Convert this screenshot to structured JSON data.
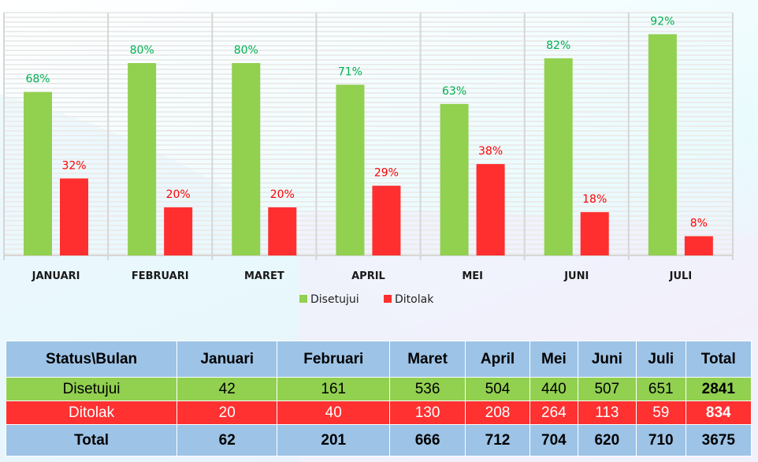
{
  "chart_data": {
    "type": "bar",
    "categories": [
      "JANUARI",
      "FEBRUARI",
      "MARET",
      "APRIL",
      "MEI",
      "JUNI",
      "JULI"
    ],
    "series": [
      {
        "name": "Disetujui",
        "values": [
          68,
          80,
          80,
          71,
          63,
          82,
          92
        ],
        "labels": [
          "68%",
          "80%",
          "80%",
          "71%",
          "63%",
          "82%",
          "92%"
        ],
        "color": "#92d050",
        "label_color": "#00b050"
      },
      {
        "name": "Ditolak",
        "values": [
          32,
          20,
          20,
          29,
          38,
          18,
          8
        ],
        "labels": [
          "32%",
          "20%",
          "20%",
          "29%",
          "38%",
          "18%",
          "8%"
        ],
        "color": "#ff2f2f",
        "label_color": "#ff0000"
      }
    ],
    "ylim": [
      0,
      100
    ],
    "grid": true,
    "legend": "bottom"
  },
  "table": {
    "headers": [
      "Status\\Bulan",
      "Januari",
      "Februari",
      "Maret",
      "April",
      "Mei",
      "Juni",
      "Juli",
      "Total"
    ],
    "rows": [
      [
        "Disetujui",
        "42",
        "161",
        "536",
        "504",
        "440",
        "507",
        "651",
        "2841"
      ],
      [
        "Ditolak",
        "20",
        "40",
        "130",
        "208",
        "264",
        "113",
        "59",
        "834"
      ],
      [
        "Total",
        "62",
        "201",
        "666",
        "712",
        "704",
        "620",
        "710",
        "3675"
      ]
    ]
  }
}
